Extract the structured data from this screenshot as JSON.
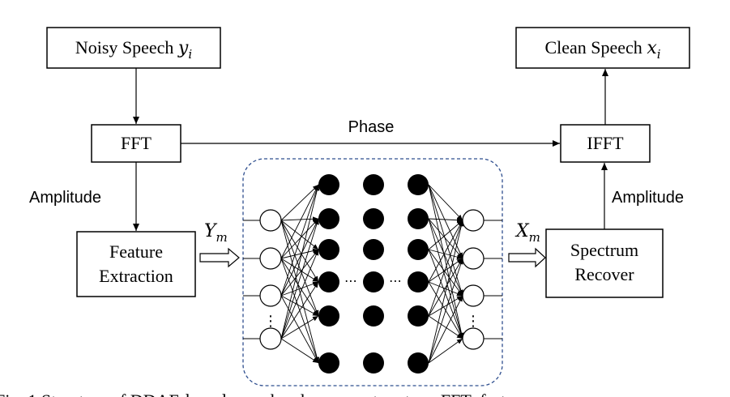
{
  "blocks": {
    "noisy_speech": {
      "text": "Noisy Speech ",
      "var": "y",
      "sub": "i"
    },
    "clean_speech": {
      "text": "Clean Speech ",
      "var": "x",
      "sub": "i"
    },
    "fft": "FFT",
    "ifft": "IFFT",
    "feature_extraction": [
      "Feature",
      "Extraction"
    ],
    "spectrum_recover": [
      "Spectrum",
      "Recover"
    ]
  },
  "edge_labels": {
    "phase": "Phase",
    "amplitude_left": "Amplitude",
    "amplitude_right": "Amplitude",
    "input_feature": {
      "var": "Y",
      "sub": "m"
    },
    "output_feature": {
      "var": "X",
      "sub": "m"
    }
  },
  "network": {
    "input_nodes_visible": 4,
    "hidden_columns": 3,
    "hidden_nodes_per_column": 6,
    "output_nodes_visible": 4,
    "ellipsis": "⋯",
    "vertical_ellipsis": "⋮",
    "colors": {
      "hidden": "#000000",
      "io": "#ffffff",
      "frame": "#2f4f8f"
    }
  },
  "caption_partial": "Fig. 1 Structure of DDAE-based speech enhancement system. FFT: fast"
}
